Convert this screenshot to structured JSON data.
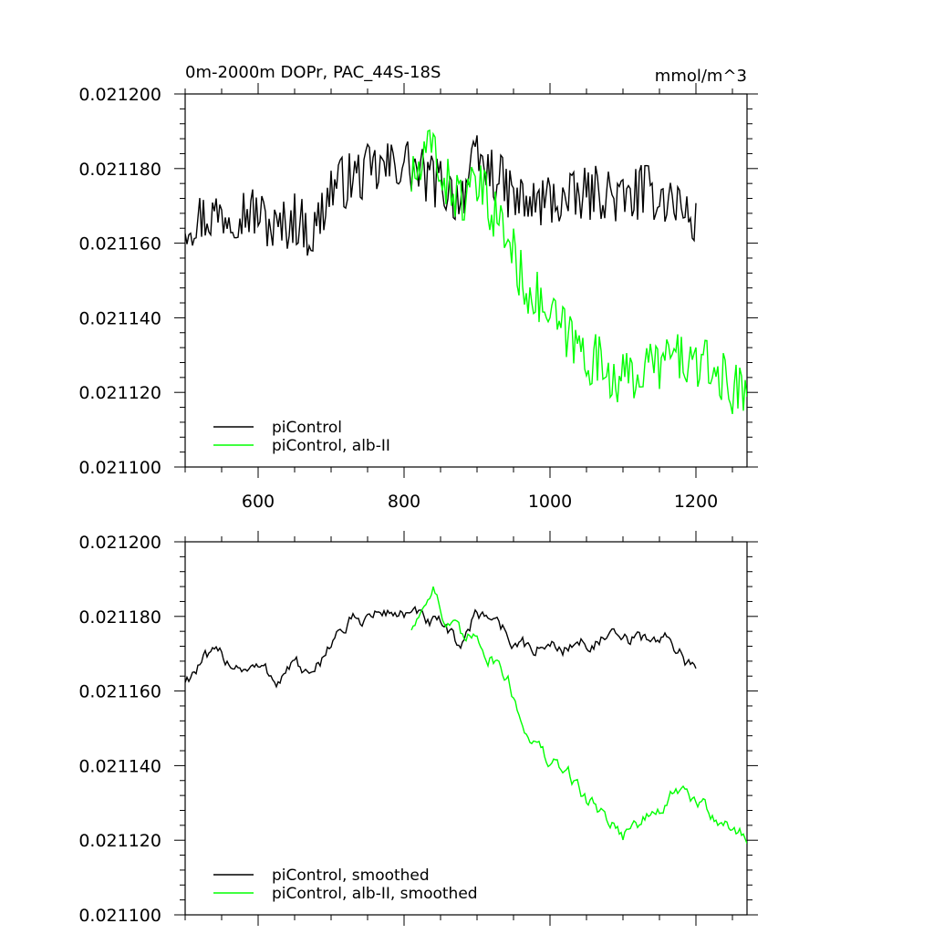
{
  "chart_data": [
    {
      "type": "line",
      "title": "0m-2000m DOPr, PAC_44S-18S",
      "units": "mmol/m^3",
      "xlim": [
        500,
        1270
      ],
      "ylim": [
        0.0211,
        0.0212
      ],
      "x_ticks": [
        600,
        800,
        1000,
        1200
      ],
      "x_tick_labels": [
        "600",
        "800",
        "1000",
        "1200"
      ],
      "y_ticks": [
        0.0211,
        0.02112,
        0.02114,
        0.02116,
        0.02118,
        0.0212
      ],
      "y_tick_labels": [
        "0.021100",
        "0.021120",
        "0.021140",
        "0.021160",
        "0.021180",
        "0.021200"
      ],
      "legend_position": "bottom-left",
      "series": [
        {
          "name": "piControl",
          "color": "#000000",
          "x": [
            500,
            525,
            550,
            575,
            600,
            625,
            650,
            675,
            700,
            725,
            750,
            775,
            800,
            825,
            850,
            875,
            900,
            925,
            950,
            975,
            1000,
            1025,
            1050,
            1075,
            1100,
            1125,
            1150,
            1175,
            1200
          ],
          "y": [
            0.021166,
            0.021167,
            0.021168,
            0.021169,
            0.021168,
            0.021163,
            0.021167,
            0.021162,
            0.021175,
            0.021177,
            0.021179,
            0.02118,
            0.021182,
            0.021178,
            0.021176,
            0.021172,
            0.021182,
            0.021178,
            0.021172,
            0.02117,
            0.021172,
            0.021171,
            0.021173,
            0.021174,
            0.021171,
            0.021174,
            0.021173,
            0.021171,
            0.021164
          ]
        },
        {
          "name": "piControl, alb-II",
          "color": "#00ff00",
          "x": [
            810,
            825,
            840,
            855,
            870,
            885,
            900,
            915,
            930,
            945,
            960,
            975,
            1000,
            1025,
            1050,
            1075,
            1100,
            1125,
            1150,
            1175,
            1200,
            1225,
            1250,
            1270
          ],
          "y": [
            0.021177,
            0.02118,
            0.021187,
            0.021176,
            0.021174,
            0.021171,
            0.021175,
            0.021171,
            0.021166,
            0.02116,
            0.021151,
            0.021147,
            0.02114,
            0.021135,
            0.02113,
            0.021127,
            0.021123,
            0.021126,
            0.021128,
            0.02113,
            0.021127,
            0.021126,
            0.021121,
            0.02112
          ]
        }
      ]
    },
    {
      "type": "line",
      "xlim": [
        500,
        1270
      ],
      "ylim": [
        0.0211,
        0.0212
      ],
      "x_ticks": [
        600,
        800,
        1000,
        1200
      ],
      "y_ticks": [
        0.0211,
        0.02112,
        0.02114,
        0.02116,
        0.02118,
        0.0212
      ],
      "y_tick_labels": [
        "0.021100",
        "0.021120",
        "0.021140",
        "0.021160",
        "0.021180",
        "0.021200"
      ],
      "legend_position": "bottom-left",
      "series": [
        {
          "name": "piControl, smoothed",
          "color": "#000000",
          "x": [
            500,
            525,
            550,
            575,
            600,
            625,
            650,
            675,
            700,
            725,
            750,
            775,
            800,
            825,
            850,
            875,
            900,
            925,
            950,
            975,
            1000,
            1025,
            1050,
            1075,
            1100,
            1125,
            1150,
            1175,
            1200
          ],
          "y": [
            0.021163,
            0.021168,
            0.021169,
            0.021167,
            0.021166,
            0.021163,
            0.021168,
            0.021162,
            0.021174,
            0.021178,
            0.02118,
            0.021181,
            0.021181,
            0.021179,
            0.021177,
            0.021172,
            0.021181,
            0.02118,
            0.021173,
            0.021171,
            0.021172,
            0.021172,
            0.021173,
            0.021174,
            0.021173,
            0.021174,
            0.021174,
            0.021172,
            0.021164
          ]
        },
        {
          "name": "piControl, alb-II, smoothed",
          "color": "#00ff00",
          "x": [
            810,
            825,
            840,
            855,
            870,
            885,
            900,
            915,
            930,
            945,
            960,
            975,
            1000,
            1025,
            1050,
            1075,
            1100,
            1125,
            1150,
            1175,
            1200,
            1225,
            1250,
            1270
          ],
          "y": [
            0.021177,
            0.021182,
            0.02119,
            0.021178,
            0.021176,
            0.021172,
            0.021176,
            0.02117,
            0.021168,
            0.021162,
            0.021152,
            0.021148,
            0.02114,
            0.021138,
            0.021131,
            0.021127,
            0.021122,
            0.021125,
            0.021128,
            0.021133,
            0.02113,
            0.021127,
            0.021123,
            0.02112
          ]
        }
      ]
    }
  ]
}
